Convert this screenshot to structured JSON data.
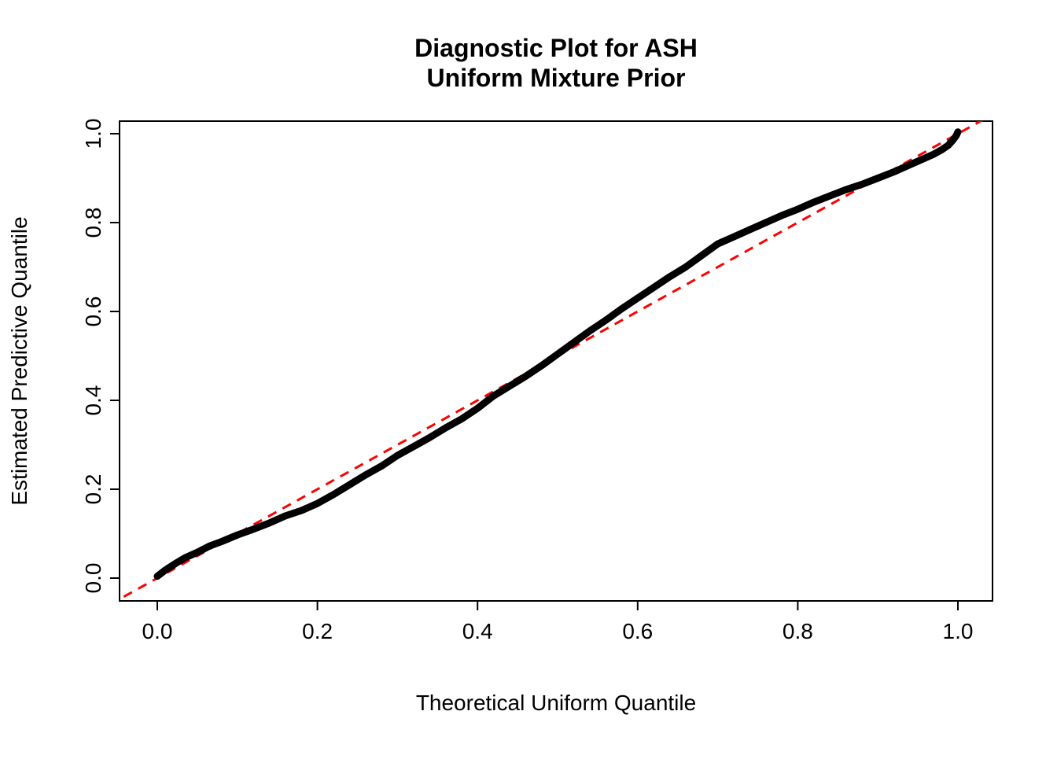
{
  "chart_data": {
    "type": "line",
    "title": "Diagnostic Plot for ASH Uniform Mixture Prior",
    "title_lines": [
      "Diagnostic Plot for ASH",
      "Uniform Mixture Prior"
    ],
    "xlabel": "Theoretical Uniform Quantile",
    "ylabel": "Estimated Predictive Quantile",
    "xlim": [
      0.0,
      1.0
    ],
    "ylim": [
      0.0,
      1.0
    ],
    "x_ticks": [
      0.0,
      0.2,
      0.4,
      0.6,
      0.8,
      1.0
    ],
    "y_ticks": [
      0.0,
      0.2,
      0.4,
      0.6,
      0.8,
      1.0
    ],
    "grid": false,
    "legend": "none",
    "series": [
      {
        "name": "estimated-predictive-quantile-curve",
        "style": "thick-solid-points",
        "color": "#000000",
        "points": [
          [
            0.0,
            0.004
          ],
          [
            0.01,
            0.018
          ],
          [
            0.022,
            0.032
          ],
          [
            0.035,
            0.046
          ],
          [
            0.05,
            0.058
          ],
          [
            0.065,
            0.072
          ],
          [
            0.08,
            0.082
          ],
          [
            0.1,
            0.097
          ],
          [
            0.12,
            0.11
          ],
          [
            0.14,
            0.124
          ],
          [
            0.16,
            0.14
          ],
          [
            0.18,
            0.152
          ],
          [
            0.2,
            0.168
          ],
          [
            0.22,
            0.188
          ],
          [
            0.24,
            0.21
          ],
          [
            0.26,
            0.232
          ],
          [
            0.28,
            0.252
          ],
          [
            0.3,
            0.276
          ],
          [
            0.32,
            0.296
          ],
          [
            0.34,
            0.316
          ],
          [
            0.36,
            0.338
          ],
          [
            0.38,
            0.358
          ],
          [
            0.4,
            0.382
          ],
          [
            0.42,
            0.41
          ],
          [
            0.44,
            0.432
          ],
          [
            0.46,
            0.454
          ],
          [
            0.48,
            0.478
          ],
          [
            0.5,
            0.504
          ],
          [
            0.52,
            0.53
          ],
          [
            0.54,
            0.556
          ],
          [
            0.56,
            0.58
          ],
          [
            0.58,
            0.606
          ],
          [
            0.6,
            0.63
          ],
          [
            0.62,
            0.654
          ],
          [
            0.64,
            0.678
          ],
          [
            0.66,
            0.7
          ],
          [
            0.68,
            0.726
          ],
          [
            0.7,
            0.752
          ],
          [
            0.72,
            0.768
          ],
          [
            0.74,
            0.784
          ],
          [
            0.76,
            0.8
          ],
          [
            0.78,
            0.816
          ],
          [
            0.8,
            0.83
          ],
          [
            0.82,
            0.846
          ],
          [
            0.84,
            0.86
          ],
          [
            0.86,
            0.874
          ],
          [
            0.88,
            0.886
          ],
          [
            0.9,
            0.9
          ],
          [
            0.92,
            0.914
          ],
          [
            0.94,
            0.93
          ],
          [
            0.955,
            0.942
          ],
          [
            0.97,
            0.954
          ],
          [
            0.98,
            0.964
          ],
          [
            0.988,
            0.974
          ],
          [
            0.994,
            0.986
          ],
          [
            0.998,
            0.996
          ],
          [
            1.0,
            1.004
          ]
        ]
      },
      {
        "name": "identity-reference-line",
        "style": "dashed",
        "color": "#FF0000",
        "points": [
          [
            0.0,
            0.0
          ],
          [
            1.0,
            1.0
          ]
        ]
      }
    ]
  },
  "colors": {
    "curve": "#000000",
    "reference_line": "#FF0000",
    "axis": "#000000",
    "background": "#FFFFFF"
  }
}
